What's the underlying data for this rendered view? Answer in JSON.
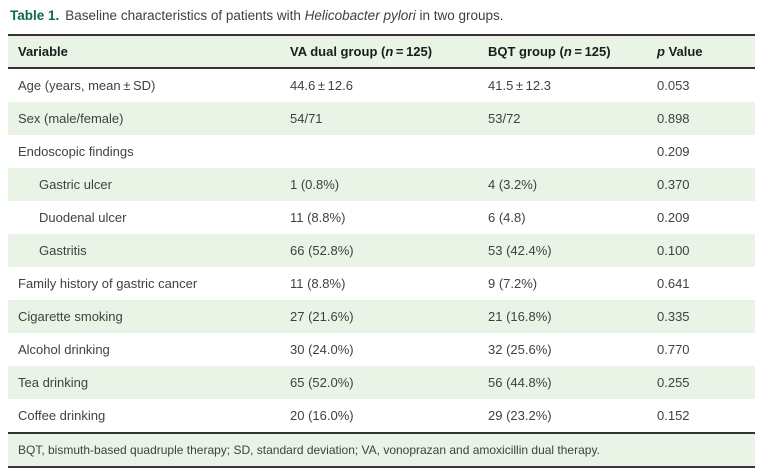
{
  "caption": {
    "label": "Table 1.",
    "segments": [
      {
        "text": "Baseline characteristics of patients with ",
        "italic": false
      },
      {
        "text": "Helicobacter pylori",
        "italic": true
      },
      {
        "text": " in two groups.",
        "italic": false
      }
    ]
  },
  "table": {
    "columns": [
      {
        "prefix": "Variable",
        "italic": "",
        "suffix": ""
      },
      {
        "prefix": "VA dual group (",
        "italic": "n",
        "suffix": " = 125)"
      },
      {
        "prefix": "BQT group (",
        "italic": "n",
        "suffix": " = 125)"
      },
      {
        "prefix": "",
        "italic": "p",
        "suffix": " Value"
      }
    ],
    "rows": [
      {
        "variable": "Age (years, mean ± SD)",
        "va": "44.6 ± 12.6",
        "bqt": "41.5 ± 12.3",
        "p": "0.053",
        "indent": false
      },
      {
        "variable": "Sex (male/female)",
        "va": "54/71",
        "bqt": "53/72",
        "p": "0.898",
        "indent": false
      },
      {
        "variable": "Endoscopic findings",
        "va": "",
        "bqt": "",
        "p": "0.209",
        "indent": false
      },
      {
        "variable": "Gastric ulcer",
        "va": "1 (0.8%)",
        "bqt": "4 (3.2%)",
        "p": "0.370",
        "indent": true
      },
      {
        "variable": "Duodenal ulcer",
        "va": "11 (8.8%)",
        "bqt": "6 (4.8)",
        "p": "0.209",
        "indent": true
      },
      {
        "variable": "Gastritis",
        "va": "66 (52.8%)",
        "bqt": "53 (42.4%)",
        "p": "0.100",
        "indent": true
      },
      {
        "variable": "Family history of gastric cancer",
        "va": "11 (8.8%)",
        "bqt": "9 (7.2%)",
        "p": "0.641",
        "indent": false
      },
      {
        "variable": "Cigarette smoking",
        "va": "27 (21.6%)",
        "bqt": "21 (16.8%)",
        "p": "0.335",
        "indent": false
      },
      {
        "variable": "Alcohol drinking",
        "va": "30 (24.0%)",
        "bqt": "32 (25.6%)",
        "p": "0.770",
        "indent": false
      },
      {
        "variable": "Tea drinking",
        "va": "65 (52.0%)",
        "bqt": "56 (44.8%)",
        "p": "0.255",
        "indent": false
      },
      {
        "variable": "Coffee drinking",
        "va": "20 (16.0%)",
        "bqt": "29 (23.2%)",
        "p": "0.152",
        "indent": false
      }
    ]
  },
  "footnote": "BQT, bismuth-based quadruple therapy; SD, standard deviation; VA, vonoprazan and amoxicillin dual therapy.",
  "colors": {
    "accent_green": "#0e6b4a",
    "stripe_green": "#e9f3e6",
    "rule_dark": "#343434",
    "body_text": "#414141"
  }
}
